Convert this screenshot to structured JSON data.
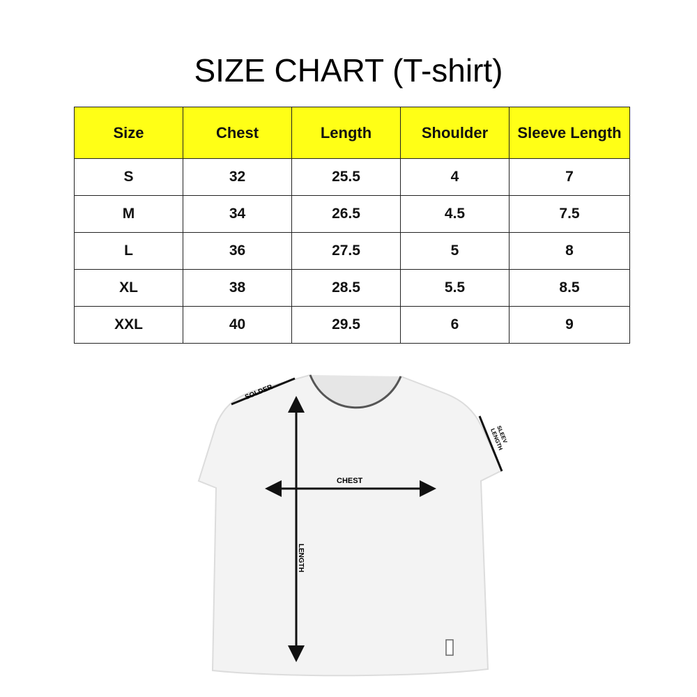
{
  "title": "SIZE CHART (T-shirt)",
  "header_color": "#ffff16",
  "table": {
    "columns": [
      "Size",
      "Chest",
      "Length",
      "Shoulder",
      "Sleeve Length"
    ],
    "rows": [
      [
        "S",
        "32",
        "25.5",
        "4",
        "7"
      ],
      [
        "M",
        "34",
        "26.5",
        "4.5",
        "7.5"
      ],
      [
        "L",
        "36",
        "27.5",
        "5",
        "8"
      ],
      [
        "XL",
        "38",
        "28.5",
        "5.5",
        "8.5"
      ],
      [
        "XXL",
        "40",
        "29.5",
        "6",
        "9"
      ]
    ]
  },
  "diagram": {
    "shoulder_label": "SOLDER",
    "sleeve_label_1": "SLEEV",
    "sleeve_label_2": "LENGTH",
    "chest_label": "CHEST",
    "length_label": "LENGTH"
  }
}
